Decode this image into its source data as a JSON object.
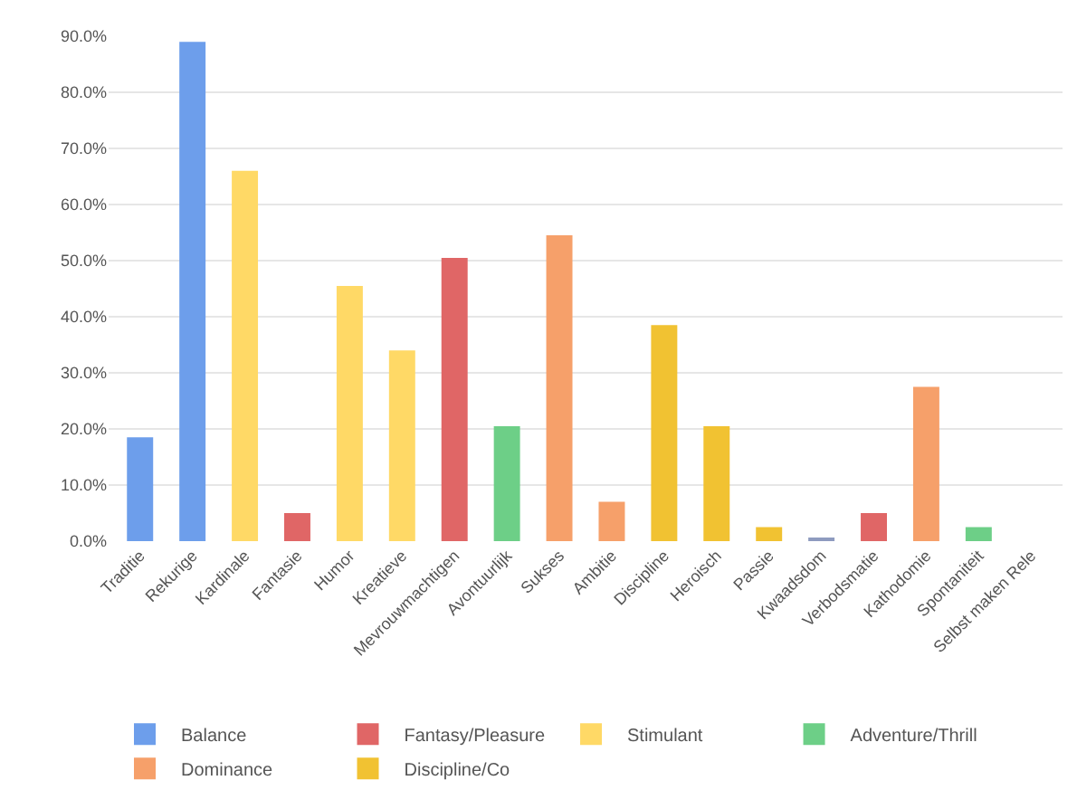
{
  "chart_data": {
    "type": "bar",
    "categories": [
      "Traditie",
      "Rekurige",
      "Kardinale",
      "Fantasie",
      "Humor",
      "Kreatieve",
      "Mevrouwmachtigen",
      "Avontuurlijk",
      "Sukses",
      "Ambitie",
      "Discipline",
      "Heroisch",
      "Passie",
      "Kwaadsdom",
      "Verbodsmatie",
      "Kathodomie",
      "Spontaniteit",
      "Selbst maken Rele"
    ],
    "series": [
      {
        "name": "Balance",
        "color": "#6d9eeb",
        "values": [
          18.5,
          89,
          null,
          null,
          null,
          null,
          null,
          null,
          null,
          null,
          null,
          null,
          null,
          null,
          null,
          null,
          null,
          null
        ]
      },
      {
        "name": "Fantasy/Pleasure",
        "color": "#e06666",
        "values": [
          null,
          null,
          null,
          5,
          null,
          null,
          50.5,
          null,
          null,
          null,
          null,
          null,
          null,
          null,
          5,
          null,
          null,
          null
        ]
      },
      {
        "name": "Stimulant",
        "color": "#ffd966",
        "values": [
          null,
          null,
          66,
          null,
          45.5,
          34,
          null,
          null,
          null,
          null,
          null,
          null,
          null,
          null,
          null,
          null,
          null,
          null
        ]
      },
      {
        "name": "Adventure/Thrill",
        "color": "#6dcf87",
        "values": [
          null,
          null,
          null,
          null,
          null,
          null,
          null,
          20.5,
          null,
          null,
          null,
          null,
          null,
          null,
          null,
          null,
          2.5,
          null
        ]
      },
      {
        "name": "Dominance",
        "color": "#f6a06a",
        "values": [
          null,
          null,
          null,
          null,
          null,
          null,
          null,
          null,
          54.5,
          7,
          null,
          null,
          null,
          null,
          null,
          27.5,
          null,
          null
        ]
      },
      {
        "name": "Discipline/Co",
        "color": "#f1c232",
        "values": [
          null,
          null,
          null,
          null,
          null,
          null,
          null,
          null,
          null,
          null,
          38.5,
          20.5,
          2.5,
          null,
          null,
          null,
          null,
          null
        ]
      },
      {
        "color": "#8e9bbf",
        "values": [
          null,
          null,
          null,
          null,
          null,
          null,
          null,
          null,
          null,
          null,
          null,
          null,
          null,
          0.5,
          null,
          null,
          null,
          null
        ]
      }
    ],
    "ylim": [
      0,
      90
    ],
    "yticks": [
      {
        "value": 0,
        "label": "0.0%"
      },
      {
        "value": 10,
        "label": "10.0%"
      },
      {
        "value": 20,
        "label": "20.0%"
      },
      {
        "value": 30,
        "label": "30.0%"
      },
      {
        "value": 40,
        "label": "40.0%"
      },
      {
        "value": 50,
        "label": "50.0%"
      },
      {
        "value": 60,
        "label": "60.0%"
      },
      {
        "value": 70,
        "label": "70.0%"
      },
      {
        "value": 80,
        "label": "80.0%"
      },
      {
        "value": 90,
        "label": "90.0%"
      }
    ],
    "grid": "y",
    "legend": "bottom"
  }
}
